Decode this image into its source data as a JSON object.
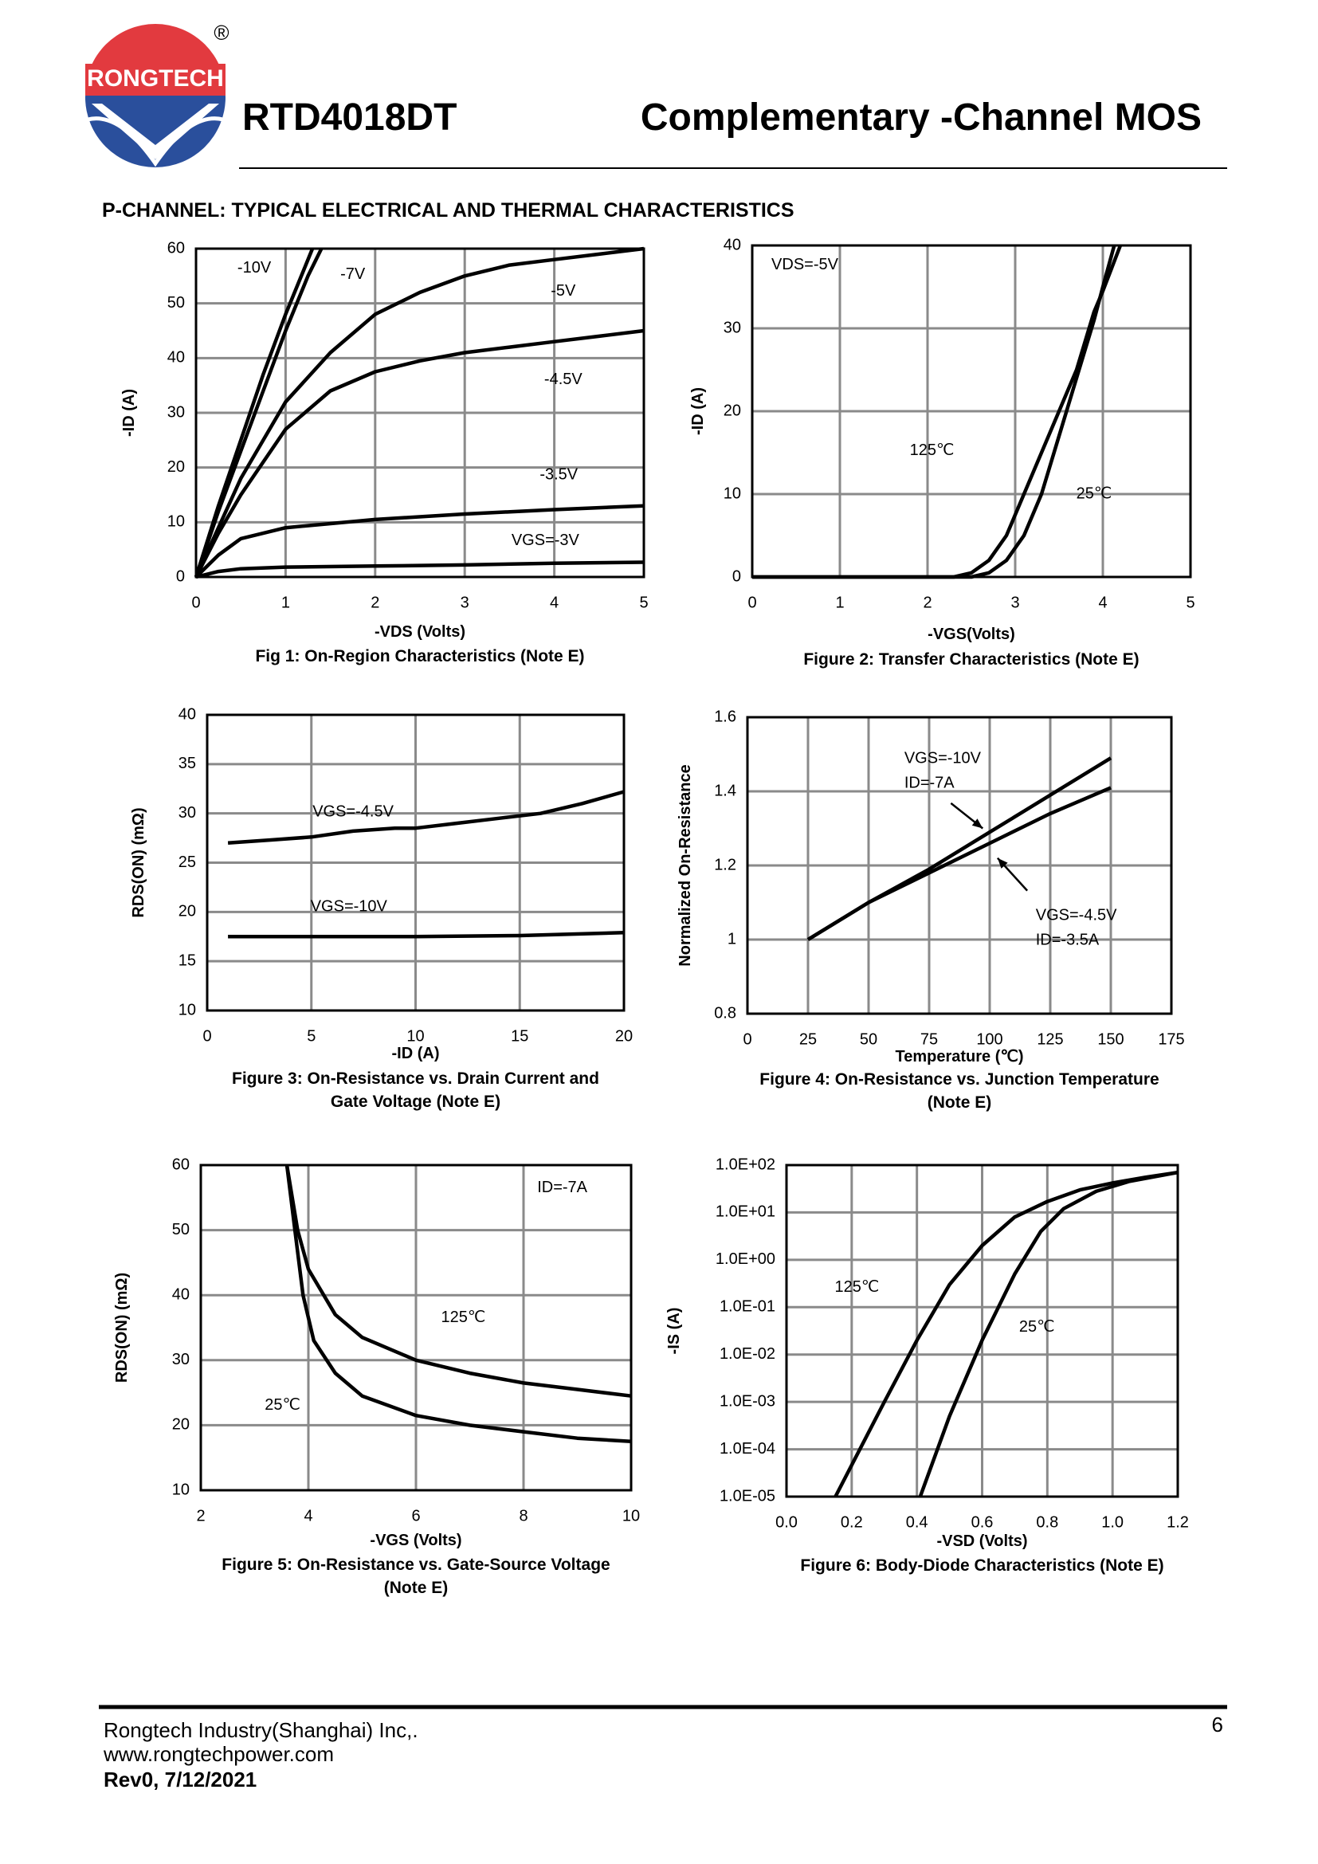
{
  "header": {
    "logo_text": "RONGTECH",
    "logo_mark": "®",
    "part_number": "RTD4018DT",
    "title": "Complementary -Channel MOS",
    "section": "P-CHANNEL: TYPICAL ELECTRICAL AND THERMAL CHARACTERISTICS"
  },
  "footer": {
    "company": "Rongtech Industry(Shanghai) Inc,.",
    "website": "www.rongtechpower.com",
    "revision": "Rev0, 7/12/2021",
    "page": "6"
  },
  "chart_data": [
    {
      "type": "line",
      "title": [
        "Fig 1: On-Region Characteristics (Note E)"
      ],
      "xlabel": "-VDS (Volts)",
      "ylabel": "-ID (A)",
      "xlim": [
        0,
        5
      ],
      "ylim": [
        0,
        60
      ],
      "xticks": [
        0,
        1,
        2,
        3,
        4,
        5
      ],
      "yticks": [
        0,
        10,
        20,
        30,
        40,
        50,
        60
      ],
      "grid": true,
      "series": [
        {
          "name": "-10V",
          "color": "#000000",
          "x": [
            0,
            0.25,
            0.5,
            0.75,
            1,
            1.2,
            1.3
          ],
          "values": [
            0,
            13,
            25,
            37,
            48,
            56,
            60
          ]
        },
        {
          "name": "-7V",
          "color": "#000000",
          "x": [
            0,
            0.25,
            0.5,
            0.75,
            1,
            1.25,
            1.4
          ],
          "values": [
            0,
            12,
            23,
            34,
            45,
            55,
            60
          ]
        },
        {
          "name": "-5V",
          "color": "#000000",
          "x": [
            0,
            0.25,
            0.5,
            1,
            1.5,
            2,
            2.5,
            3,
            3.5,
            4,
            4.5,
            5
          ],
          "values": [
            0,
            9,
            18,
            32,
            41,
            48,
            52,
            55,
            57,
            58,
            59,
            60
          ]
        },
        {
          "name": "-4.5V",
          "color": "#000000",
          "x": [
            0,
            0.25,
            0.5,
            1,
            1.5,
            2,
            2.5,
            3,
            3.5,
            4,
            4.5,
            5
          ],
          "values": [
            0,
            8,
            15,
            27,
            34,
            37.5,
            39.5,
            41,
            42,
            43,
            44,
            45
          ]
        },
        {
          "name": "-3.5V",
          "color": "#000000",
          "x": [
            0,
            0.25,
            0.5,
            1,
            2,
            3,
            4,
            5
          ],
          "values": [
            0,
            4,
            7,
            9,
            10.5,
            11.5,
            12.3,
            13
          ]
        },
        {
          "name": "VGS=-3V",
          "color": "#000000",
          "x": [
            0,
            0.25,
            0.5,
            1,
            2,
            3,
            4,
            5
          ],
          "values": [
            0,
            1,
            1.5,
            1.8,
            2,
            2.2,
            2.5,
            2.7
          ]
        }
      ]
    },
    {
      "type": "line",
      "title": [
        "Figure 2: Transfer Characteristics (Note E)"
      ],
      "xlabel": "-VGS(Volts)",
      "ylabel": "-ID (A)",
      "annotation": "VDS=-5V",
      "xlim": [
        0,
        5
      ],
      "ylim": [
        0,
        40
      ],
      "xticks": [
        0,
        1,
        2,
        3,
        4,
        5
      ],
      "yticks": [
        0,
        10,
        20,
        30,
        40
      ],
      "grid": true,
      "series": [
        {
          "name": "125℃",
          "color": "#000000",
          "x": [
            0,
            2.3,
            2.5,
            2.7,
            2.9,
            3.1,
            3.3,
            3.5,
            3.7,
            3.9,
            4,
            4.2
          ],
          "values": [
            0,
            0,
            0.5,
            2,
            5,
            10,
            15,
            20,
            25,
            32,
            34.5,
            40
          ]
        },
        {
          "name": "25℃",
          "color": "#000000",
          "x": [
            0,
            2.5,
            2.7,
            2.9,
            3.1,
            3.3,
            3.5,
            3.7,
            3.9,
            4,
            4.13
          ],
          "values": [
            0,
            0,
            0.5,
            2,
            5,
            10,
            17,
            24,
            31,
            35,
            40
          ]
        }
      ]
    },
    {
      "type": "line",
      "title": [
        "Figure 3: On-Resistance vs. Drain Current and",
        "Gate Voltage (Note E)"
      ],
      "xlabel": "-ID (A)",
      "ylabel": "RDS(ON) (mΩ)",
      "xlim": [
        0,
        20
      ],
      "ylim": [
        10,
        40
      ],
      "xticks": [
        0,
        5,
        10,
        15,
        20
      ],
      "yticks": [
        10,
        15,
        20,
        25,
        30,
        35,
        40
      ],
      "grid": true,
      "series": [
        {
          "name": "VGS=-4.5V",
          "color": "#000000",
          "x": [
            1,
            3,
            5,
            7,
            9,
            10,
            12,
            14,
            16,
            18,
            20
          ],
          "values": [
            27,
            27.3,
            27.6,
            28.2,
            28.5,
            28.5,
            29,
            29.5,
            30,
            31,
            32.2
          ]
        },
        {
          "name": "VGS=-10V",
          "color": "#000000",
          "x": [
            1,
            5,
            10,
            15,
            20
          ],
          "values": [
            17.5,
            17.5,
            17.5,
            17.6,
            17.9
          ]
        }
      ]
    },
    {
      "type": "line",
      "title": [
        "Figure 4: On-Resistance vs. Junction Temperature",
        "(Note E)"
      ],
      "xlabel": "Temperature (℃)",
      "ylabel": "Normalized On-Resistance",
      "xlim": [
        0,
        175
      ],
      "ylim": [
        0.8,
        1.6
      ],
      "xticks": [
        0,
        25,
        50,
        75,
        100,
        125,
        150,
        175
      ],
      "yticks": [
        0.8,
        1,
        1.2,
        1.4,
        1.6
      ],
      "grid": true,
      "series": [
        {
          "name": "VGS=-10V",
          "condition": "ID=-7A",
          "color": "#000000",
          "x": [
            25,
            50,
            75,
            100,
            125,
            150
          ],
          "values": [
            1,
            1.1,
            1.19,
            1.29,
            1.39,
            1.49
          ]
        },
        {
          "name": "VGS=-4.5V",
          "condition": "ID=-3.5A",
          "color": "#000000",
          "x": [
            25,
            50,
            75,
            100,
            125,
            150
          ],
          "values": [
            1,
            1.1,
            1.18,
            1.26,
            1.34,
            1.41
          ]
        }
      ]
    },
    {
      "type": "line",
      "title": [
        "Figure 5: On-Resistance vs. Gate-Source Voltage",
        "(Note E)"
      ],
      "xlabel": "-VGS (Volts)",
      "ylabel": "RDS(ON) (mΩ)",
      "annotation": "ID=-7A",
      "xlim": [
        2,
        10
      ],
      "ylim": [
        10,
        60
      ],
      "xticks": [
        2,
        4,
        6,
        8,
        10
      ],
      "yticks": [
        10,
        20,
        30,
        40,
        50,
        60
      ],
      "grid": true,
      "series": [
        {
          "name": "125℃",
          "color": "#000000",
          "x": [
            3.6,
            3.8,
            4,
            4.5,
            5,
            6,
            7,
            8,
            9,
            10
          ],
          "values": [
            60,
            50,
            44,
            37,
            33.5,
            30,
            28,
            26.5,
            25.5,
            24.5
          ]
        },
        {
          "name": "25℃",
          "color": "#000000",
          "x": [
            3.6,
            3.75,
            3.9,
            4.1,
            4.5,
            5,
            6,
            7,
            8,
            9,
            10
          ],
          "values": [
            60,
            50,
            40,
            33,
            28,
            24.5,
            21.5,
            20,
            19,
            18,
            17.5
          ]
        }
      ]
    },
    {
      "type": "line",
      "title": [
        "Figure 6: Body-Diode Characteristics (Note E)"
      ],
      "xlabel": "-VSD (Volts)",
      "ylabel": "-IS (A)",
      "yscale": "log",
      "xlim": [
        0,
        1.2
      ],
      "ylim": [
        1e-05,
        100
      ],
      "xticks": [
        {
          "value": 0,
          "label": "0.0"
        },
        0.2,
        0.4,
        0.6,
        0.8,
        {
          "value": 1,
          "label": "1.0"
        },
        1.2
      ],
      "yticks": [
        {
          "value": 1e-05,
          "label": "1.0E-05"
        },
        {
          "value": 0.0001,
          "label": "1.0E-04"
        },
        {
          "value": 0.001,
          "label": "1.0E-03"
        },
        {
          "value": 0.01,
          "label": "1.0E-02"
        },
        {
          "value": 0.1,
          "label": "1.0E-01"
        },
        {
          "value": 1,
          "label": "1.0E+00"
        },
        {
          "value": 10,
          "label": "1.0E+01"
        },
        {
          "value": 100,
          "label": "1.0E+02"
        }
      ],
      "grid": true,
      "series": [
        {
          "name": "125℃",
          "color": "#000000",
          "x": [
            0.15,
            0.3,
            0.4,
            0.5,
            0.6,
            0.7,
            0.8,
            0.9,
            1,
            1.1,
            1.2
          ],
          "values": [
            1e-05,
            0.001,
            0.02,
            0.3,
            2,
            8,
            17,
            30,
            42,
            55,
            70
          ]
        },
        {
          "name": "25℃",
          "color": "#000000",
          "x": [
            0.41,
            0.5,
            0.6,
            0.7,
            0.78,
            0.85,
            0.95,
            1.05,
            1.2
          ],
          "values": [
            1e-05,
            0.0005,
            0.02,
            0.5,
            4,
            12,
            28,
            45,
            70
          ]
        }
      ]
    }
  ]
}
